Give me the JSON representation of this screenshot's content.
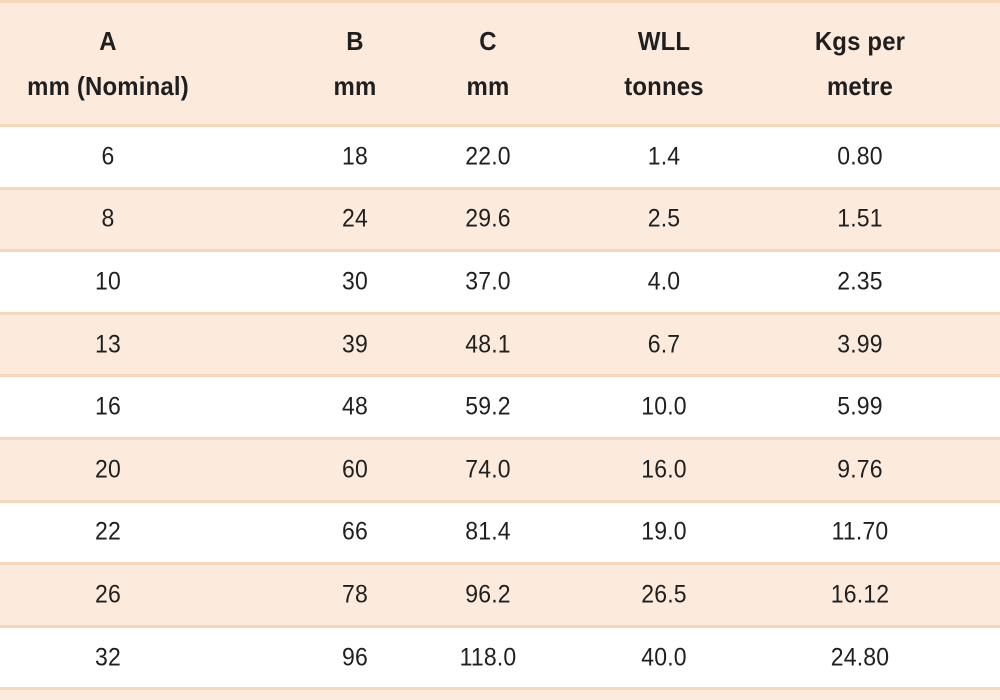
{
  "table": {
    "columns": [
      {
        "id": "a",
        "line1": "A",
        "line2": "mm (Nominal)"
      },
      {
        "id": "b",
        "line1": "B",
        "line2": "mm"
      },
      {
        "id": "c",
        "line1": "C",
        "line2": "mm"
      },
      {
        "id": "wll",
        "line1": "WLL",
        "line2": "tonnes"
      },
      {
        "id": "kgs",
        "line1": "Kgs per",
        "line2": "metre"
      }
    ],
    "rows": [
      [
        "6",
        "18",
        "22.0",
        "1.4",
        "0.80"
      ],
      [
        "8",
        "24",
        "29.6",
        "2.5",
        "1.51"
      ],
      [
        "10",
        "30",
        "37.0",
        "4.0",
        "2.35"
      ],
      [
        "13",
        "39",
        "48.1",
        "6.7",
        "3.99"
      ],
      [
        "16",
        "48",
        "59.2",
        "10.0",
        "5.99"
      ],
      [
        "20",
        "60",
        "74.0",
        "16.0",
        "9.76"
      ],
      [
        "22",
        "66",
        "81.4",
        "19.0",
        "11.70"
      ],
      [
        "26",
        "78",
        "96.2",
        "26.5",
        "16.12"
      ],
      [
        "32",
        "96",
        "118.0",
        "40.0",
        "24.80"
      ]
    ]
  },
  "colors": {
    "stripe_background": "#fcebdd",
    "row_border": "#f8d6ba",
    "text": "#1f1f1f",
    "row_background": "#ffffff"
  },
  "chart_data": {
    "type": "table",
    "title": "Chain / lifting component dimension and load specification table",
    "columns": [
      "A mm (Nominal)",
      "B mm",
      "C mm",
      "WLL tonnes",
      "Kgs per metre"
    ],
    "rows": [
      [
        6,
        18,
        22.0,
        1.4,
        0.8
      ],
      [
        8,
        24,
        29.6,
        2.5,
        1.51
      ],
      [
        10,
        30,
        37.0,
        4.0,
        2.35
      ],
      [
        13,
        39,
        48.1,
        6.7,
        3.99
      ],
      [
        16,
        48,
        59.2,
        10.0,
        5.99
      ],
      [
        20,
        60,
        74.0,
        16.0,
        9.76
      ],
      [
        22,
        66,
        81.4,
        19.0,
        11.7
      ],
      [
        26,
        78,
        96.2,
        26.5,
        16.12
      ],
      [
        32,
        96,
        118.0,
        40.0,
        24.8
      ]
    ],
    "layout": {
      "striped_rows": true,
      "stripe_pattern": "header and even data rows peach, odd data rows white",
      "text_align": "center",
      "grid": "horizontal row borders only"
    }
  }
}
